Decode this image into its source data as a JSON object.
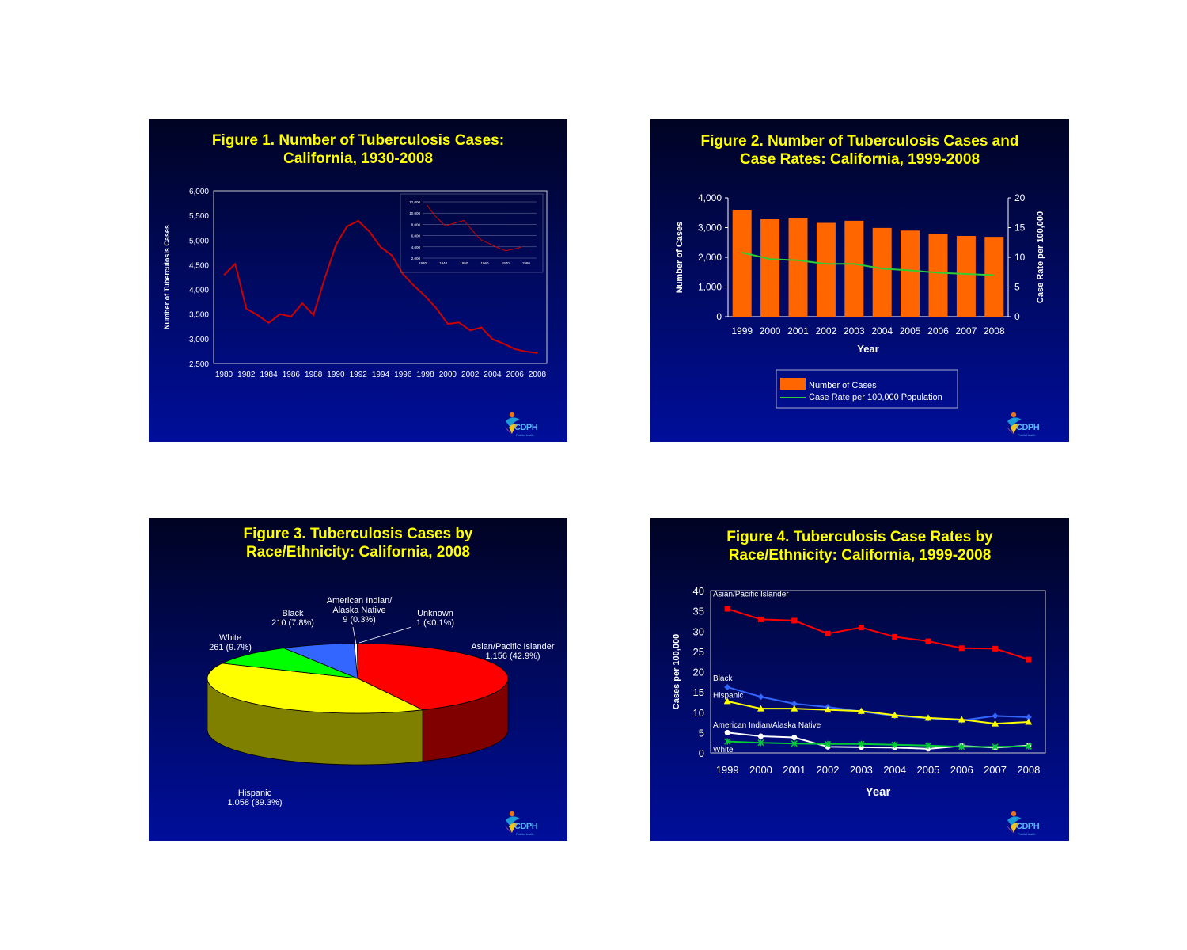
{
  "logo": {
    "letters": "CDPH",
    "caption": "PublicHealth",
    "colors": [
      "#1a9ad6",
      "#e8731a",
      "#f2c31b",
      "#7a3fa0"
    ]
  },
  "chart_data": [
    {
      "id": "fig1",
      "type": "line",
      "title": "Figure 1. Number of Tuberculosis Cases:\nCalifornia, 1930-2008",
      "xlabel": "",
      "ylabel": "Number of Tuberculosis Cases",
      "ylim": [
        2500,
        6000
      ],
      "yticks": [
        2500,
        3000,
        3500,
        4000,
        4500,
        5000,
        5500,
        6000
      ],
      "ytick_labels": [
        "2,500",
        "3,000",
        "3,500",
        "4,000",
        "4,500",
        "5,000",
        "5,500",
        "6,000"
      ],
      "xlim": [
        1980,
        2008
      ],
      "xtick_labels": [
        "1980",
        "1982",
        "1984",
        "1986",
        "1988",
        "1990",
        "1992",
        "1994",
        "1996",
        "1998",
        "2000",
        "2002",
        "2004",
        "2006",
        "2008"
      ],
      "series": [
        {
          "color": "#cc0000",
          "x": [
            1980,
            1981,
            1982,
            1983,
            1984,
            1985,
            1986,
            1987,
            1988,
            1989,
            1990,
            1991,
            1992,
            1993,
            1994,
            1995,
            1996,
            1997,
            1998,
            1999,
            2000,
            2001,
            2002,
            2003,
            2004,
            2005,
            2006,
            2007,
            2008
          ],
          "values": [
            4290,
            4520,
            3610,
            3480,
            3320,
            3500,
            3450,
            3720,
            3480,
            4220,
            4900,
            5280,
            5390,
            5170,
            4860,
            4690,
            4310,
            4070,
            3860,
            3610,
            3300,
            3330,
            3170,
            3230,
            2990,
            2900,
            2790,
            2740,
            2710
          ]
        }
      ],
      "inset": {
        "type": "line",
        "ylim": [
          2000,
          12000
        ],
        "ytick_labels": [
          "2,000",
          "4,000",
          "6,000",
          "8,000",
          "10,000",
          "12,000"
        ],
        "xlim": [
          1930,
          1985
        ],
        "xtick_labels": [
          "1930",
          "1940",
          "1950",
          "1960",
          "1970",
          "1980"
        ],
        "x": [
          1932,
          1936,
          1941,
          1946,
          1950,
          1954,
          1958,
          1962,
          1966,
          1970,
          1974,
          1978
        ],
        "values": [
          11500,
          9500,
          7700,
          8300,
          8700,
          6900,
          5300,
          4600,
          3900,
          3300,
          3600,
          4000
        ]
      }
    },
    {
      "id": "fig2",
      "type": "bar",
      "title": "Figure 2. Number of Tuberculosis Cases and\nCase Rates: California, 1999-2008",
      "xlabel": "Year",
      "ylabel": "Number of Cases",
      "y2label": "Case Rate per 100,000",
      "ylim": [
        0,
        4000
      ],
      "ytick_labels": [
        "0",
        "1,000",
        "2,000",
        "3,000",
        "4,000"
      ],
      "y2lim": [
        0,
        20
      ],
      "y2tick_labels": [
        "0",
        "5",
        "10",
        "15",
        "20"
      ],
      "categories": [
        "1999",
        "2000",
        "2001",
        "2002",
        "2003",
        "2004",
        "2005",
        "2006",
        "2007",
        "2008"
      ],
      "series": [
        {
          "name": "Number of Cases",
          "type": "bar",
          "color": "#ff6600",
          "values": [
            3600,
            3280,
            3330,
            3160,
            3230,
            2990,
            2900,
            2780,
            2720,
            2690
          ]
        },
        {
          "name": "Case Rate per 100,000 Population",
          "type": "line",
          "axis": "right",
          "color": "#33cc33",
          "values": [
            10.8,
            9.7,
            9.5,
            8.9,
            8.9,
            8.1,
            7.8,
            7.4,
            7.2,
            7.0
          ]
        }
      ],
      "legend": "bottom-center"
    },
    {
      "id": "fig3",
      "type": "pie",
      "title": "Figure 3. Tuberculosis Cases by\nRace/Ethnicity: California, 2008",
      "slices": [
        {
          "label": "Asian/Pacific Islander",
          "value_label": "1,156 (42.9%)",
          "value": 1156,
          "color": "#ff0000",
          "side": "#800000"
        },
        {
          "label": "Hispanic",
          "value_label": "1.058 (39.3%)",
          "value": 1058,
          "color": "#ffff00",
          "side": "#808000"
        },
        {
          "label": "White",
          "value_label": "261 (9.7%)",
          "value": 261,
          "color": "#00ff00",
          "side": "#008000"
        },
        {
          "label": "Black",
          "value_label": "210 (7.8%)",
          "value": 210,
          "color": "#3366ff",
          "side": "#1a3380"
        },
        {
          "label": "American Indian/\nAlaska Native",
          "value_label": "9 (0.3%)",
          "value": 9,
          "color": "#ffffff",
          "side": "#808080"
        },
        {
          "label": "Unknown",
          "value_label": "1 (<0.1%)",
          "value": 1,
          "color": "#000080",
          "side": "#000040"
        }
      ]
    },
    {
      "id": "fig4",
      "type": "line",
      "title": "Figure 4. Tuberculosis Case Rates by\nRace/Ethnicity: California, 1999-2008",
      "xlabel": "Year",
      "ylabel": "Cases per 100,000",
      "ylim": [
        0,
        40
      ],
      "ytick_labels": [
        "0",
        "5",
        "10",
        "15",
        "20",
        "25",
        "30",
        "35",
        "40"
      ],
      "categories": [
        "1999",
        "2000",
        "2001",
        "2002",
        "2003",
        "2004",
        "2005",
        "2006",
        "2007",
        "2008"
      ],
      "series": [
        {
          "name": "Asian/Pacific Islander",
          "color": "#ff0000",
          "marker": "square",
          "values": [
            35.5,
            32.9,
            32.6,
            29.4,
            30.9,
            28.6,
            27.5,
            25.8,
            25.7,
            23.0
          ]
        },
        {
          "name": "Black",
          "color": "#3366ff",
          "marker": "diamond",
          "values": [
            16.2,
            13.8,
            12.1,
            11.3,
            10.2,
            9.1,
            8.5,
            8.0,
            9.1,
            8.8
          ]
        },
        {
          "name": "Hispanic",
          "color": "#ffff00",
          "marker": "triangle",
          "values": [
            12.7,
            10.9,
            10.9,
            10.6,
            10.3,
            9.3,
            8.6,
            8.2,
            7.2,
            7.6
          ]
        },
        {
          "name": "American Indian/Alaska Native",
          "color": "#ffffff",
          "marker": "circle",
          "values": [
            5.0,
            4.1,
            3.8,
            1.5,
            1.4,
            1.3,
            1.0,
            1.7,
            1.3,
            1.8
          ]
        },
        {
          "name": "White",
          "color": "#00cc33",
          "marker": "star",
          "values": [
            2.8,
            2.5,
            2.3,
            2.2,
            2.2,
            2.0,
            1.8,
            1.5,
            1.5,
            1.6
          ]
        }
      ]
    }
  ]
}
